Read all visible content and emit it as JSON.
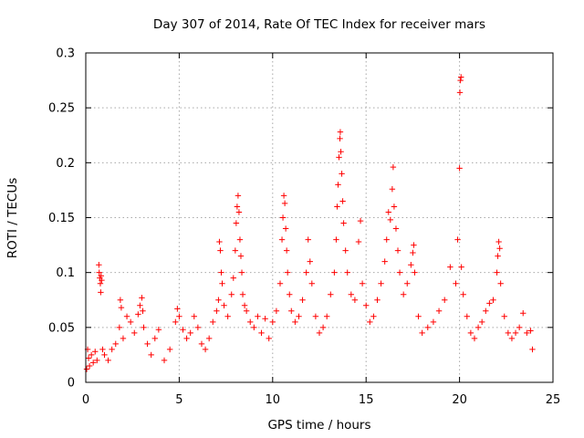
{
  "chart_data": {
    "type": "scatter",
    "title": "Day 307 of 2014, Rate Of TEC Index for receiver mars",
    "xlabel": "GPS time / hours",
    "ylabel": "ROTI / TECUs",
    "xlim": [
      0,
      25
    ],
    "ylim": [
      0,
      0.3
    ],
    "xticks": [
      0,
      5,
      10,
      15,
      20,
      25
    ],
    "xtick_labels": [
      "0",
      "5",
      "10",
      "15",
      "20",
      "25"
    ],
    "yticks": [
      0,
      0.05,
      0.1,
      0.15,
      0.2,
      0.25,
      0.3
    ],
    "ytick_labels": [
      "0",
      "0.05",
      "0.1",
      "0.15",
      "0.2",
      "0.25",
      "0.3"
    ],
    "grid": true,
    "marker": "+",
    "color": "#ff0000",
    "series": [
      {
        "name": "ROTI",
        "points": [
          [
            0.05,
            0.012
          ],
          [
            0.1,
            0.03
          ],
          [
            0.15,
            0.022
          ],
          [
            0.2,
            0.015
          ],
          [
            0.3,
            0.025
          ],
          [
            0.4,
            0.018
          ],
          [
            0.5,
            0.028
          ],
          [
            0.6,
            0.02
          ],
          [
            0.7,
            0.107
          ],
          [
            0.72,
            0.1
          ],
          [
            0.75,
            0.095
          ],
          [
            0.78,
            0.09
          ],
          [
            0.8,
            0.082
          ],
          [
            0.82,
            0.097
          ],
          [
            0.85,
            0.093
          ],
          [
            0.9,
            0.03
          ],
          [
            1.0,
            0.025
          ],
          [
            1.2,
            0.02
          ],
          [
            1.4,
            0.03
          ],
          [
            1.6,
            0.035
          ],
          [
            1.8,
            0.05
          ],
          [
            1.85,
            0.075
          ],
          [
            1.9,
            0.068
          ],
          [
            2.0,
            0.04
          ],
          [
            2.2,
            0.06
          ],
          [
            2.4,
            0.055
          ],
          [
            2.6,
            0.045
          ],
          [
            2.8,
            0.062
          ],
          [
            2.9,
            0.07
          ],
          [
            3.0,
            0.077
          ],
          [
            3.05,
            0.065
          ],
          [
            3.1,
            0.05
          ],
          [
            3.3,
            0.035
          ],
          [
            3.5,
            0.025
          ],
          [
            3.7,
            0.04
          ],
          [
            3.9,
            0.048
          ],
          [
            4.2,
            0.02
          ],
          [
            4.5,
            0.03
          ],
          [
            4.8,
            0.055
          ],
          [
            4.9,
            0.067
          ],
          [
            5.0,
            0.06
          ],
          [
            5.2,
            0.048
          ],
          [
            5.4,
            0.04
          ],
          [
            5.6,
            0.045
          ],
          [
            5.8,
            0.06
          ],
          [
            6.0,
            0.05
          ],
          [
            6.2,
            0.035
          ],
          [
            6.4,
            0.03
          ],
          [
            6.6,
            0.04
          ],
          [
            6.8,
            0.055
          ],
          [
            7.0,
            0.065
          ],
          [
            7.1,
            0.075
          ],
          [
            7.15,
            0.128
          ],
          [
            7.2,
            0.12
          ],
          [
            7.25,
            0.1
          ],
          [
            7.3,
            0.09
          ],
          [
            7.4,
            0.07
          ],
          [
            7.6,
            0.06
          ],
          [
            7.8,
            0.08
          ],
          [
            7.9,
            0.095
          ],
          [
            8.0,
            0.12
          ],
          [
            8.05,
            0.145
          ],
          [
            8.1,
            0.16
          ],
          [
            8.15,
            0.17
          ],
          [
            8.2,
            0.155
          ],
          [
            8.25,
            0.13
          ],
          [
            8.3,
            0.115
          ],
          [
            8.35,
            0.1
          ],
          [
            8.4,
            0.08
          ],
          [
            8.5,
            0.07
          ],
          [
            8.6,
            0.065
          ],
          [
            8.8,
            0.055
          ],
          [
            9.0,
            0.05
          ],
          [
            9.2,
            0.06
          ],
          [
            9.4,
            0.045
          ],
          [
            9.6,
            0.058
          ],
          [
            9.8,
            0.04
          ],
          [
            10.0,
            0.055
          ],
          [
            10.2,
            0.065
          ],
          [
            10.4,
            0.09
          ],
          [
            10.5,
            0.13
          ],
          [
            10.55,
            0.15
          ],
          [
            10.6,
            0.17
          ],
          [
            10.65,
            0.163
          ],
          [
            10.7,
            0.14
          ],
          [
            10.75,
            0.12
          ],
          [
            10.8,
            0.1
          ],
          [
            10.9,
            0.08
          ],
          [
            11.0,
            0.065
          ],
          [
            11.2,
            0.055
          ],
          [
            11.4,
            0.06
          ],
          [
            11.6,
            0.075
          ],
          [
            11.8,
            0.1
          ],
          [
            11.9,
            0.13
          ],
          [
            12.0,
            0.11
          ],
          [
            12.1,
            0.09
          ],
          [
            12.3,
            0.06
          ],
          [
            12.5,
            0.045
          ],
          [
            12.7,
            0.05
          ],
          [
            12.9,
            0.06
          ],
          [
            13.1,
            0.08
          ],
          [
            13.3,
            0.1
          ],
          [
            13.4,
            0.13
          ],
          [
            13.45,
            0.16
          ],
          [
            13.5,
            0.18
          ],
          [
            13.55,
            0.205
          ],
          [
            13.6,
            0.222
          ],
          [
            13.62,
            0.228
          ],
          [
            13.65,
            0.21
          ],
          [
            13.7,
            0.19
          ],
          [
            13.75,
            0.165
          ],
          [
            13.8,
            0.145
          ],
          [
            13.9,
            0.12
          ],
          [
            14.0,
            0.1
          ],
          [
            14.2,
            0.08
          ],
          [
            14.4,
            0.075
          ],
          [
            14.6,
            0.128
          ],
          [
            14.7,
            0.147
          ],
          [
            14.8,
            0.09
          ],
          [
            15.0,
            0.07
          ],
          [
            15.2,
            0.055
          ],
          [
            15.4,
            0.06
          ],
          [
            15.6,
            0.075
          ],
          [
            15.8,
            0.09
          ],
          [
            16.0,
            0.11
          ],
          [
            16.1,
            0.13
          ],
          [
            16.2,
            0.155
          ],
          [
            16.3,
            0.148
          ],
          [
            16.4,
            0.176
          ],
          [
            16.45,
            0.196
          ],
          [
            16.5,
            0.16
          ],
          [
            16.6,
            0.14
          ],
          [
            16.7,
            0.12
          ],
          [
            16.8,
            0.1
          ],
          [
            17.0,
            0.08
          ],
          [
            17.2,
            0.09
          ],
          [
            17.4,
            0.107
          ],
          [
            17.5,
            0.118
          ],
          [
            17.55,
            0.125
          ],
          [
            17.6,
            0.1
          ],
          [
            17.8,
            0.06
          ],
          [
            18.0,
            0.045
          ],
          [
            18.3,
            0.05
          ],
          [
            18.6,
            0.055
          ],
          [
            18.9,
            0.065
          ],
          [
            19.2,
            0.075
          ],
          [
            19.5,
            0.105
          ],
          [
            19.8,
            0.09
          ],
          [
            19.9,
            0.13
          ],
          [
            20.0,
            0.195
          ],
          [
            20.02,
            0.264
          ],
          [
            20.05,
            0.275
          ],
          [
            20.08,
            0.278
          ],
          [
            20.1,
            0.105
          ],
          [
            20.2,
            0.08
          ],
          [
            20.4,
            0.06
          ],
          [
            20.6,
            0.045
          ],
          [
            20.8,
            0.04
          ],
          [
            21.0,
            0.05
          ],
          [
            21.2,
            0.055
          ],
          [
            21.4,
            0.065
          ],
          [
            21.6,
            0.072
          ],
          [
            21.8,
            0.075
          ],
          [
            22.0,
            0.1
          ],
          [
            22.05,
            0.115
          ],
          [
            22.1,
            0.128
          ],
          [
            22.15,
            0.122
          ],
          [
            22.2,
            0.09
          ],
          [
            22.4,
            0.06
          ],
          [
            22.6,
            0.045
          ],
          [
            22.8,
            0.04
          ],
          [
            23.0,
            0.045
          ],
          [
            23.2,
            0.05
          ],
          [
            23.4,
            0.063
          ],
          [
            23.6,
            0.045
          ],
          [
            23.8,
            0.047
          ],
          [
            23.9,
            0.03
          ]
        ]
      }
    ]
  }
}
